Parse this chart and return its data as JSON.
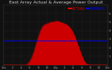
{
  "title": "East Array Actual & Average Power Output",
  "bg_color": "#111111",
  "plot_bg": "#111111",
  "grid_color": "#444444",
  "fill_color": "#cc0000",
  "avg_line_color": "#0000ff",
  "title_color": "#dddddd",
  "tick_color": "#aaaaaa",
  "hours": [
    0.0,
    0.5,
    1.0,
    1.5,
    2.0,
    2.5,
    3.0,
    3.5,
    4.0,
    4.5,
    5.0,
    5.5,
    6.0,
    6.5,
    7.0,
    7.5,
    8.0,
    8.5,
    9.0,
    9.5,
    10.0,
    10.5,
    11.0,
    11.5,
    12.0,
    12.5,
    13.0,
    13.5,
    14.0,
    14.5,
    15.0,
    15.5,
    16.0,
    16.5,
    17.0,
    17.5,
    18.0,
    18.5,
    19.0,
    19.5,
    20.0,
    20.5,
    21.0,
    21.5,
    22.0,
    22.5,
    23.0,
    23.5,
    24.0
  ],
  "power": [
    0,
    0,
    0,
    0,
    0,
    0,
    0,
    0,
    0,
    0,
    0,
    0.1,
    0.4,
    0.9,
    1.6,
    2.5,
    3.3,
    4.0,
    4.5,
    4.7,
    4.8,
    4.9,
    5.0,
    5.0,
    5.1,
    5.1,
    5.0,
    4.9,
    4.8,
    4.7,
    4.5,
    4.2,
    3.8,
    3.2,
    2.5,
    1.8,
    1.1,
    0.5,
    0.15,
    0.05,
    0,
    0,
    0,
    0,
    0,
    0,
    0,
    0,
    0
  ],
  "avg_power": 2.8,
  "ymax": 7.0,
  "ymin": 0,
  "xmin": 0,
  "xmax": 24,
  "xtick_labels": [
    "12a",
    "2",
    "4",
    "6",
    "8",
    "10",
    "12p",
    "2",
    "4",
    "6",
    "8",
    "10",
    "12a"
  ],
  "xtick_pos": [
    0,
    2,
    4,
    6,
    8,
    10,
    12,
    14,
    16,
    18,
    20,
    22,
    24
  ],
  "ytick_labels": [
    "1",
    "2",
    "3",
    "4",
    "5",
    "6"
  ],
  "ytick_pos": [
    1,
    2,
    3,
    4,
    5,
    6
  ],
  "title_fontsize": 4.5,
  "tick_fontsize": 3.0,
  "legend_fontsize": 3.5,
  "legend_actual_label": "ACTUAL",
  "legend_avg_label": "AVERAGE",
  "legend_actual_color": "#ff0000",
  "legend_avg_color": "#0000ff"
}
